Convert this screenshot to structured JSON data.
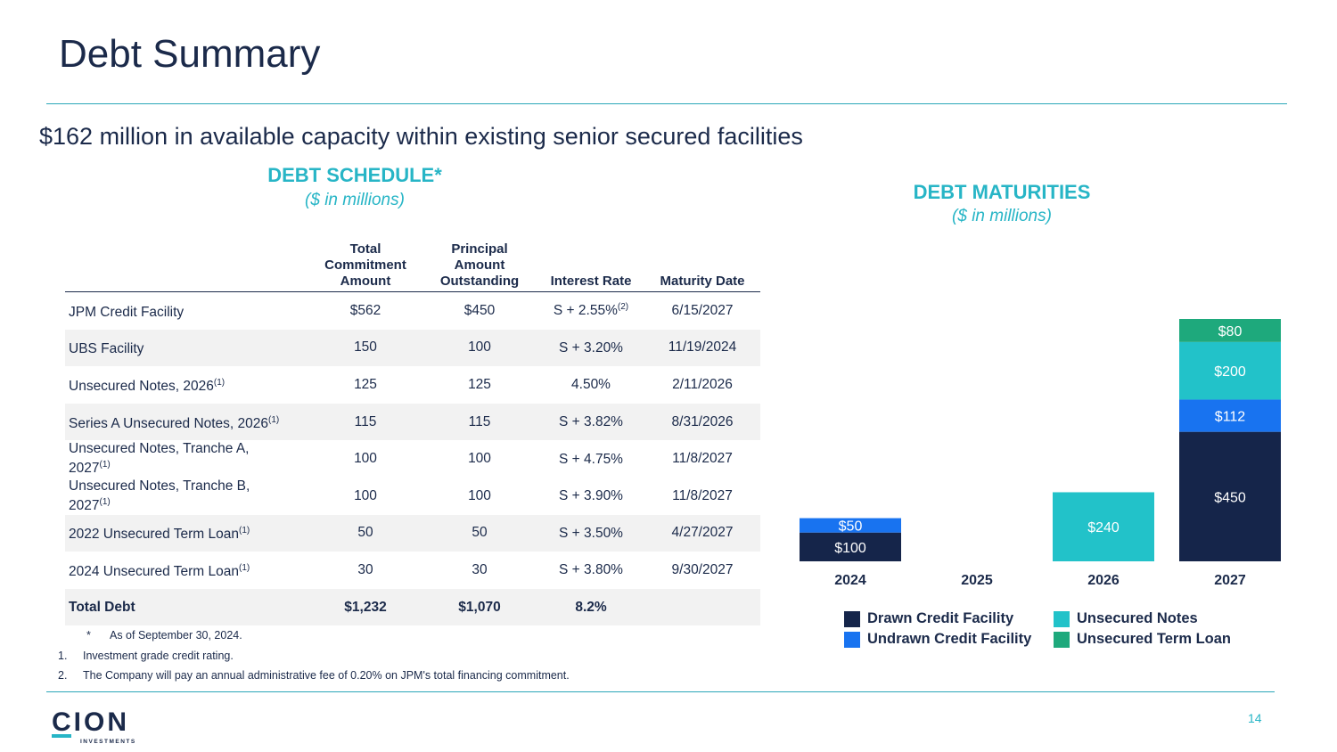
{
  "page": {
    "title": "Debt Summary",
    "subtitle": "$162 million in available capacity within existing senior secured facilities",
    "page_number": "14"
  },
  "schedule": {
    "heading": "DEBT SCHEDULE*",
    "subheading": "($ in millions)",
    "columns": [
      "Total Commitment Amount",
      "Principal Amount Outstanding",
      "Interest Rate",
      "Maturity Date"
    ],
    "rows": [
      {
        "name": "JPM Credit Facility",
        "sup": "",
        "commitment": "$562",
        "principal": "$450",
        "rate": "S + 2.55%",
        "rate_sup": "(2)",
        "maturity": "6/15/2027"
      },
      {
        "name": "UBS Facility",
        "sup": "",
        "commitment": "150",
        "principal": "100",
        "rate": "S + 3.20%",
        "rate_sup": "",
        "maturity": "11/19/2024"
      },
      {
        "name": "Unsecured Notes, 2026",
        "sup": "(1)",
        "commitment": "125",
        "principal": "125",
        "rate": "4.50%",
        "rate_sup": "",
        "maturity": "2/11/2026"
      },
      {
        "name": "Series A Unsecured Notes, 2026",
        "sup": "(1)",
        "commitment": "115",
        "principal": "115",
        "rate": "S + 3.82%",
        "rate_sup": "",
        "maturity": "8/31/2026"
      },
      {
        "name": "Unsecured Notes, Tranche A,",
        "name2": "2027",
        "sup": "(1)",
        "commitment": "100",
        "principal": "100",
        "rate": "S + 4.75%",
        "rate_sup": "",
        "maturity": "11/8/2027"
      },
      {
        "name": "Unsecured Notes, Tranche B,",
        "name2": "2027",
        "sup": "(1)",
        "commitment": "100",
        "principal": "100",
        "rate": "S + 3.90%",
        "rate_sup": "",
        "maturity": "11/8/2027"
      },
      {
        "name": "2022 Unsecured Term Loan",
        "sup": "(1)",
        "commitment": "50",
        "principal": "50",
        "rate": "S + 3.50%",
        "rate_sup": "",
        "maturity": "4/27/2027"
      },
      {
        "name": "2024 Unsecured Term Loan",
        "sup": "(1)",
        "commitment": "30",
        "principal": "30",
        "rate": "S + 3.80%",
        "rate_sup": "",
        "maturity": "9/30/2027"
      }
    ],
    "total": {
      "name": "Total Debt",
      "commitment": "$1,232",
      "principal": "$1,070",
      "rate": "8.2%",
      "maturity": ""
    }
  },
  "footnotes": {
    "asterisk_mark": "*",
    "asterisk": "As of September 30, 2024.",
    "n1_mark": "1.",
    "n1": "Investment grade credit rating.",
    "n2_mark": "2.",
    "n2": "The Company will pay an annual administrative fee of 0.20% on JPM's total financing commitment."
  },
  "maturities": {
    "heading": "DEBT MATURITIES",
    "subheading": "($ in millions)"
  },
  "logo": {
    "word": "CION",
    "tag": "INVESTMENTS"
  },
  "chart_data": {
    "type": "bar",
    "stacked": true,
    "categories": [
      "2024",
      "2025",
      "2026",
      "2027"
    ],
    "series": [
      {
        "name": "Drawn Credit Facility",
        "color": "#15254a",
        "values": [
          100,
          0,
          0,
          450
        ],
        "labels": [
          "$100",
          "",
          "",
          "$450"
        ]
      },
      {
        "name": "Undrawn Credit Facility",
        "color": "#1873f0",
        "values": [
          50,
          0,
          0,
          112
        ],
        "labels": [
          "$50",
          "",
          "",
          "$112"
        ]
      },
      {
        "name": "Unsecured Notes",
        "color": "#22c2c9",
        "values": [
          0,
          0,
          240,
          200
        ],
        "labels": [
          "",
          "",
          "$240",
          "$200"
        ]
      },
      {
        "name": "Unsecured Term Loan",
        "color": "#1ea97c",
        "values": [
          0,
          0,
          0,
          80
        ],
        "labels": [
          "",
          "",
          "",
          "$80"
        ]
      }
    ],
    "legend": "bottom"
  },
  "colors": {
    "navy": "#1b2a4a",
    "teal": "#27b5c6",
    "row_shade": "#f2f2f2"
  }
}
